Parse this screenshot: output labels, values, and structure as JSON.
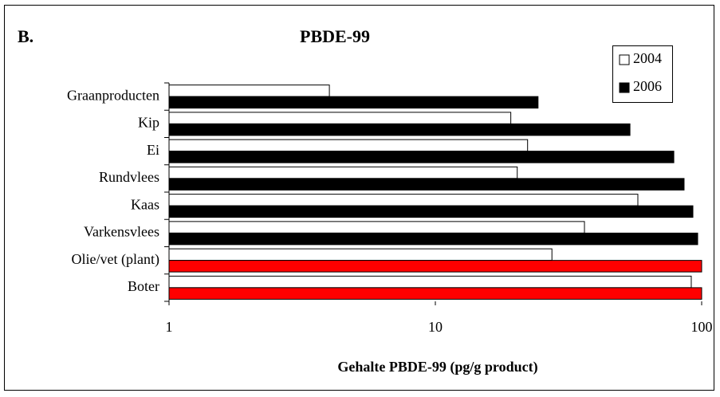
{
  "chart_data": {
    "type": "bar",
    "orientation": "horizontal",
    "panel_label": "B.",
    "title": "PBDE-99",
    "xlabel": "Gehalte PBDE-99 (pg/g product)",
    "categories": [
      "Graanproducten",
      "Kip",
      "Ei",
      "Rundvlees",
      "Kaas",
      "Varkensvlees",
      "Olie/vet (plant)",
      "Boter"
    ],
    "series": [
      {
        "name": "2004",
        "color": "#ffffff",
        "values": [
          4.0,
          19.2,
          22.2,
          20.3,
          57.6,
          36.3,
          27.4,
          91.4
        ]
      },
      {
        "name": "2006",
        "color": "#000000",
        "colors": [
          "#000000",
          "#000000",
          "#000000",
          "#000000",
          "#000000",
          "#000000",
          "#ff0000",
          "#ff0000"
        ],
        "values": [
          24.3,
          53.8,
          78.6,
          85.9,
          92.7,
          96.6,
          100,
          100
        ]
      }
    ],
    "xlim": [
      1,
      100
    ],
    "xticks": [
      1,
      10,
      100
    ],
    "log_x": true,
    "legend": "top-right"
  }
}
